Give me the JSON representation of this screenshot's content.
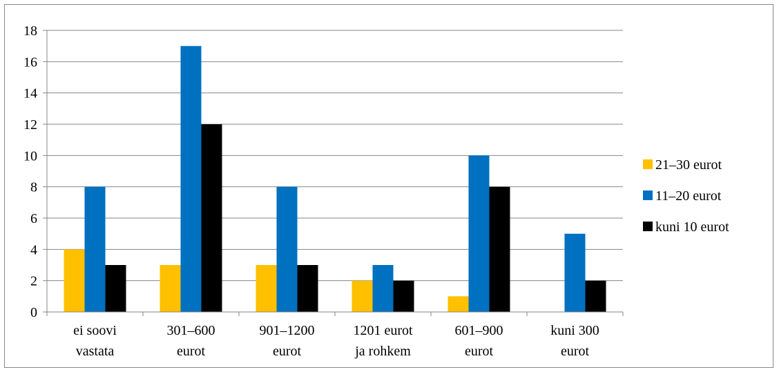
{
  "chart_data": {
    "type": "bar",
    "categories": [
      [
        "ei soovi",
        "vastata"
      ],
      [
        "301–600",
        "eurot"
      ],
      [
        "901–1200",
        "eurot"
      ],
      [
        "1201 eurot",
        "ja rohkem"
      ],
      [
        "601–900",
        "eurot"
      ],
      [
        "kuni 300",
        "eurot"
      ]
    ],
    "series": [
      {
        "name": "21–30 eurot",
        "color": "#FFC000",
        "values": [
          4,
          3,
          3,
          2,
          1,
          0
        ]
      },
      {
        "name": "11–20 eurot",
        "color": "#0070C0",
        "values": [
          8,
          17,
          8,
          3,
          10,
          5
        ]
      },
      {
        "name": "kuni 10 eurot",
        "color": "#000000",
        "values": [
          3,
          12,
          3,
          2,
          8,
          2
        ]
      }
    ],
    "ylim": [
      0,
      18
    ],
    "yticks": [
      0,
      2,
      4,
      6,
      8,
      10,
      12,
      14,
      16,
      18
    ],
    "grid": true,
    "legend_position": "right",
    "title": "",
    "xlabel": "",
    "ylabel": ""
  }
}
